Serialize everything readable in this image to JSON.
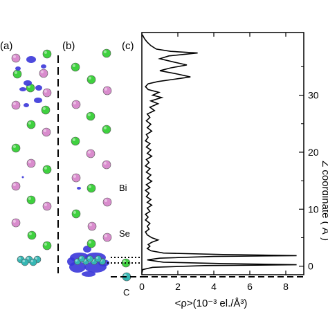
{
  "panels": {
    "a": "(a)",
    "b": "(b)",
    "c": "(c)"
  },
  "species_labels": {
    "bi": "Bi",
    "se": "Se",
    "c": "C"
  },
  "colors": {
    "bi_atom": "#d98ccd",
    "se_atom": "#3fd13f",
    "c_atom": "#35b7b4",
    "density_isosurface": "#3a36d9",
    "curve": "#000000"
  },
  "chart_data": {
    "type": "line",
    "title": "",
    "xlabel": "<ρ>(10⁻³ el./Å³)",
    "ylabel": "Z coordinate ( Å )",
    "xlim": [
      0,
      9
    ],
    "ylim": [
      -1.5,
      41
    ],
    "xticks": [
      "0",
      "2",
      "4",
      "6",
      "8"
    ],
    "yticks": [
      "0",
      "10",
      "20",
      "30"
    ],
    "y_minor_ticks": [
      5,
      15,
      25,
      35
    ],
    "orientation": "density along x, z-coordinate along y",
    "series": [
      {
        "points": [
          [
            0.0,
            -1.2
          ],
          [
            0.05,
            -0.6
          ],
          [
            0.6,
            -0.2
          ],
          [
            3.5,
            0.1
          ],
          [
            8.6,
            0.25
          ],
          [
            4.5,
            0.45
          ],
          [
            1.2,
            0.7
          ],
          [
            0.3,
            1.1
          ],
          [
            1.0,
            1.4
          ],
          [
            4.0,
            1.7
          ],
          [
            8.6,
            1.85
          ],
          [
            4.5,
            2.05
          ],
          [
            1.2,
            2.3
          ],
          [
            0.5,
            2.7
          ],
          [
            0.3,
            3.1
          ],
          [
            0.45,
            3.5
          ],
          [
            0.35,
            3.8
          ],
          [
            0.55,
            4.2
          ],
          [
            0.9,
            4.6
          ],
          [
            0.55,
            5.0
          ],
          [
            0.3,
            5.5
          ],
          [
            0.2,
            6.0
          ],
          [
            0.4,
            6.5
          ],
          [
            0.3,
            7.0
          ],
          [
            0.45,
            7.5
          ],
          [
            0.2,
            8.1
          ],
          [
            0.35,
            8.6
          ],
          [
            0.2,
            9.1
          ],
          [
            0.45,
            9.6
          ],
          [
            0.3,
            10.2
          ],
          [
            0.55,
            10.7
          ],
          [
            0.3,
            11.2
          ],
          [
            0.5,
            11.7
          ],
          [
            0.25,
            12.2
          ],
          [
            0.4,
            12.8
          ],
          [
            0.2,
            13.3
          ],
          [
            0.45,
            13.8
          ],
          [
            0.25,
            14.3
          ],
          [
            0.55,
            14.9
          ],
          [
            0.3,
            15.4
          ],
          [
            0.5,
            16.0
          ],
          [
            0.25,
            16.5
          ],
          [
            0.45,
            17.1
          ],
          [
            0.2,
            17.6
          ],
          [
            0.4,
            18.2
          ],
          [
            0.25,
            18.7
          ],
          [
            0.55,
            19.3
          ],
          [
            0.3,
            19.8
          ],
          [
            0.5,
            20.4
          ],
          [
            0.25,
            20.9
          ],
          [
            0.45,
            21.5
          ],
          [
            0.2,
            22.0
          ],
          [
            0.35,
            22.6
          ],
          [
            0.25,
            23.1
          ],
          [
            0.55,
            23.7
          ],
          [
            0.3,
            24.3
          ],
          [
            0.5,
            24.9
          ],
          [
            0.25,
            25.5
          ],
          [
            0.45,
            26.1
          ],
          [
            0.3,
            26.7
          ],
          [
            0.7,
            27.3
          ],
          [
            0.45,
            27.9
          ],
          [
            0.9,
            28.5
          ],
          [
            0.5,
            29.0
          ],
          [
            1.1,
            29.6
          ],
          [
            0.6,
            30.0
          ],
          [
            0.95,
            30.5
          ],
          [
            0.35,
            31.0
          ],
          [
            0.2,
            31.5
          ],
          [
            0.35,
            32.0
          ],
          [
            0.9,
            32.4
          ],
          [
            1.8,
            32.8
          ],
          [
            2.7,
            33.2
          ],
          [
            2.0,
            33.7
          ],
          [
            1.0,
            34.3
          ],
          [
            1.6,
            34.8
          ],
          [
            2.5,
            35.3
          ],
          [
            1.8,
            35.8
          ],
          [
            1.0,
            36.4
          ],
          [
            1.5,
            36.9
          ],
          [
            3.1,
            37.4
          ],
          [
            1.6,
            37.7
          ],
          [
            0.8,
            38.1
          ],
          [
            0.5,
            38.7
          ],
          [
            0.3,
            39.3
          ],
          [
            0.15,
            39.9
          ],
          [
            0.03,
            40.6
          ]
        ]
      }
    ]
  }
}
